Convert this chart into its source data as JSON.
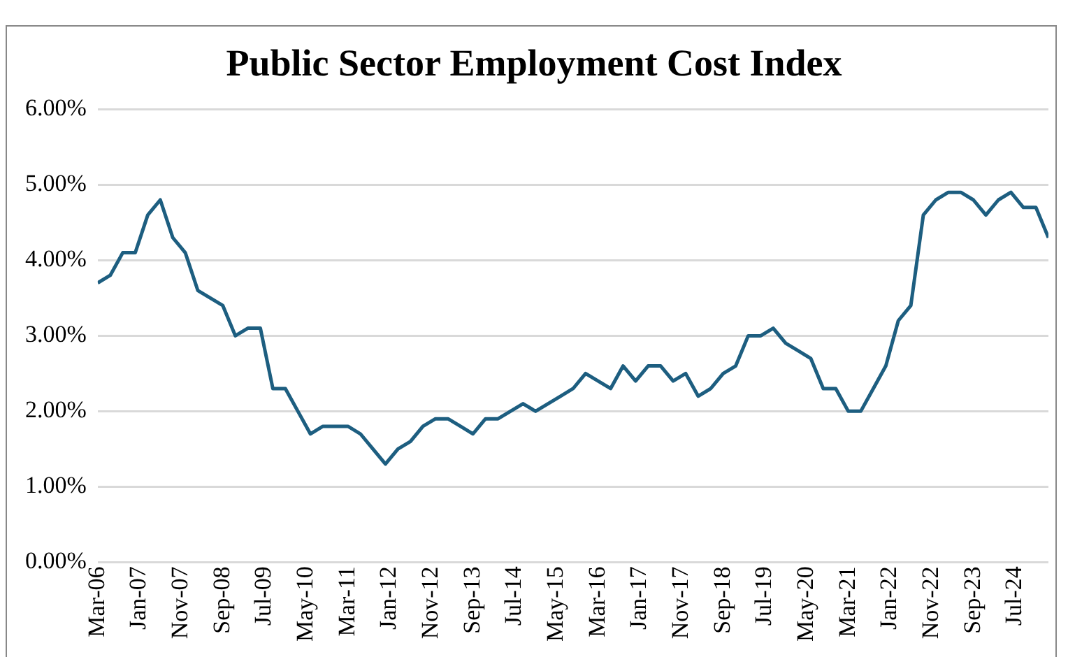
{
  "chart_data": {
    "type": "line",
    "title": "Public Sector Employment Cost Index",
    "x": [
      "2006-03",
      "2006-06",
      "2006-09",
      "2006-12",
      "2007-03",
      "2007-06",
      "2007-09",
      "2007-12",
      "2008-03",
      "2008-06",
      "2008-09",
      "2008-12",
      "2009-03",
      "2009-06",
      "2009-09",
      "2009-12",
      "2010-03",
      "2010-06",
      "2010-09",
      "2010-12",
      "2011-03",
      "2011-06",
      "2011-09",
      "2011-12",
      "2012-03",
      "2012-06",
      "2012-09",
      "2012-12",
      "2013-03",
      "2013-06",
      "2013-09",
      "2013-12",
      "2014-03",
      "2014-06",
      "2014-09",
      "2014-12",
      "2015-03",
      "2015-06",
      "2015-09",
      "2015-12",
      "2016-03",
      "2016-06",
      "2016-09",
      "2016-12",
      "2017-03",
      "2017-06",
      "2017-09",
      "2017-12",
      "2018-03",
      "2018-06",
      "2018-09",
      "2018-12",
      "2019-03",
      "2019-06",
      "2019-09",
      "2019-12",
      "2020-03",
      "2020-06",
      "2020-09",
      "2020-12",
      "2021-03",
      "2021-06",
      "2021-09",
      "2021-12",
      "2022-03",
      "2022-06",
      "2022-09",
      "2022-12",
      "2023-03",
      "2023-06",
      "2023-09",
      "2023-12",
      "2024-03",
      "2024-06",
      "2024-09",
      "2024-12",
      "2025-03"
    ],
    "series": [
      {
        "color": "#1d5e80",
        "values": [
          3.7,
          3.8,
          4.1,
          4.1,
          4.6,
          4.8,
          4.3,
          4.1,
          3.6,
          3.5,
          3.4,
          3.0,
          3.1,
          3.1,
          2.3,
          2.3,
          2.0,
          1.7,
          1.8,
          1.8,
          1.8,
          1.7,
          1.5,
          1.3,
          1.5,
          1.6,
          1.8,
          1.9,
          1.9,
          1.8,
          1.7,
          1.9,
          1.9,
          2.0,
          2.1,
          2.0,
          2.1,
          2.2,
          2.3,
          2.5,
          2.4,
          2.3,
          2.6,
          2.4,
          2.6,
          2.6,
          2.4,
          2.5,
          2.2,
          2.3,
          2.5,
          2.6,
          3.0,
          3.0,
          3.1,
          2.9,
          2.8,
          2.7,
          2.3,
          2.3,
          2.0,
          2.0,
          2.3,
          2.6,
          3.2,
          3.4,
          4.6,
          4.8,
          4.9,
          4.9,
          4.8,
          4.6,
          4.8,
          4.9,
          4.7,
          4.7,
          4.3
        ]
      }
    ],
    "xlim": [
      "2006-03",
      "2025-03"
    ],
    "xticks": [
      {
        "value": "2006-03",
        "label": "Mar-06"
      },
      {
        "value": "2007-01",
        "label": "Jan-07"
      },
      {
        "value": "2007-11",
        "label": "Nov-07"
      },
      {
        "value": "2008-09",
        "label": "Sep-08"
      },
      {
        "value": "2009-07",
        "label": "Jul-09"
      },
      {
        "value": "2010-05",
        "label": "May-10"
      },
      {
        "value": "2011-03",
        "label": "Mar-11"
      },
      {
        "value": "2012-01",
        "label": "Jan-12"
      },
      {
        "value": "2012-11",
        "label": "Nov-12"
      },
      {
        "value": "2013-09",
        "label": "Sep-13"
      },
      {
        "value": "2014-07",
        "label": "Jul-14"
      },
      {
        "value": "2015-05",
        "label": "May-15"
      },
      {
        "value": "2016-03",
        "label": "Mar-16"
      },
      {
        "value": "2017-01",
        "label": "Jan-17"
      },
      {
        "value": "2017-11",
        "label": "Nov-17"
      },
      {
        "value": "2018-09",
        "label": "Sep-18"
      },
      {
        "value": "2019-07",
        "label": "Jul-19"
      },
      {
        "value": "2020-05",
        "label": "May-20"
      },
      {
        "value": "2021-03",
        "label": "Mar-21"
      },
      {
        "value": "2022-01",
        "label": "Jan-22"
      },
      {
        "value": "2022-11",
        "label": "Nov-22"
      },
      {
        "value": "2023-09",
        "label": "Sep-23"
      },
      {
        "value": "2024-07",
        "label": "Jul-24"
      }
    ],
    "ylim": [
      0,
      6
    ],
    "yticks": [
      {
        "value": 0,
        "label": "0.00%"
      },
      {
        "value": 1,
        "label": "1.00%"
      },
      {
        "value": 2,
        "label": "2.00%"
      },
      {
        "value": 3,
        "label": "3.00%"
      },
      {
        "value": 4,
        "label": "4.00%"
      },
      {
        "value": 5,
        "label": "5.00%"
      },
      {
        "value": 6,
        "label": "6.00%"
      }
    ],
    "grid": "y",
    "legend": false,
    "marker": "none",
    "line_style": "solid"
  }
}
